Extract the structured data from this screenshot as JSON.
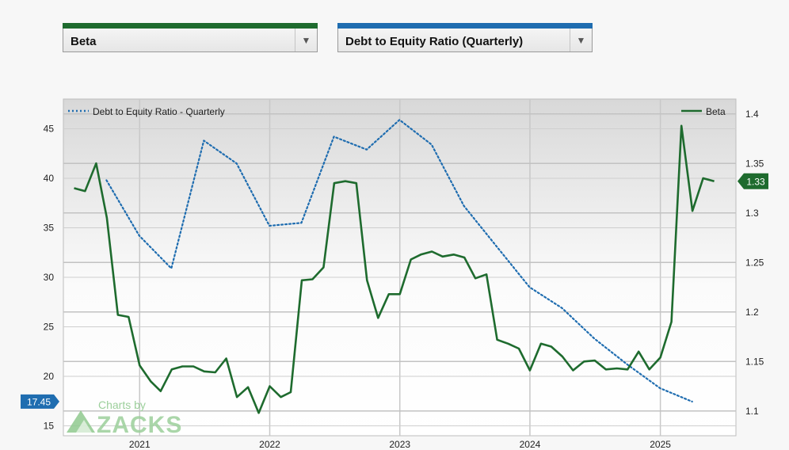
{
  "selectors": {
    "left": {
      "label": "Beta",
      "color": "#1e6b2e",
      "arrow": "▼"
    },
    "right": {
      "label": "Debt to Equity Ratio (Quarterly)",
      "color": "#1f6db0",
      "arrow": "▼"
    }
  },
  "watermark": {
    "line1": "Charts by",
    "line2": "ZACKS"
  },
  "chart_data": {
    "type": "line",
    "title": "",
    "grid": true,
    "x_ticks": [
      "2021",
      "2022",
      "2023",
      "2024",
      "2025"
    ],
    "y_left": {
      "ticks": [
        "45",
        "40",
        "35",
        "30",
        "25",
        "20",
        "15"
      ],
      "range": [
        14,
        48
      ]
    },
    "y_right": {
      "ticks": [
        "1.4",
        "1.35",
        "1.3",
        "1.25",
        "1.2",
        "1.15",
        "1.1"
      ],
      "range": [
        1.075,
        1.415
      ]
    },
    "legend": {
      "left_entry": "Debt to Equity Ratio - Quarterly",
      "right_entry": "Beta"
    },
    "series": [
      {
        "name": "Debt to Equity Ratio - Quarterly",
        "axis": "left",
        "color": "#1f6db0",
        "style": "dotted",
        "points": [
          [
            "2020-09-30",
            39.8
          ],
          [
            "2020-12-31",
            34.2
          ],
          [
            "2021-03-31",
            30.9
          ],
          [
            "2021-06-30",
            43.8
          ],
          [
            "2021-09-30",
            41.5
          ],
          [
            "2021-12-31",
            35.2
          ],
          [
            "2022-03-31",
            35.5
          ],
          [
            "2022-06-30",
            44.2
          ],
          [
            "2022-09-30",
            42.9
          ],
          [
            "2022-12-31",
            45.9
          ],
          [
            "2023-03-31",
            43.4
          ],
          [
            "2023-06-30",
            37.2
          ],
          [
            "2023-09-30",
            33.1
          ],
          [
            "2023-12-31",
            29.0
          ],
          [
            "2024-03-31",
            26.9
          ],
          [
            "2024-06-30",
            23.8
          ],
          [
            "2024-09-30",
            21.2
          ],
          [
            "2024-12-31",
            18.8
          ],
          [
            "2025-03-31",
            17.45
          ]
        ],
        "last_label": "17.45"
      },
      {
        "name": "Beta",
        "axis": "right",
        "color": "#1e6b2e",
        "style": "solid",
        "points": [
          [
            "2020-07-01",
            1.325
          ],
          [
            "2020-08-01",
            1.322
          ],
          [
            "2020-09-01",
            1.35
          ],
          [
            "2020-10-01",
            1.295
          ],
          [
            "2020-11-01",
            1.197
          ],
          [
            "2020-12-01",
            1.195
          ],
          [
            "2021-01-01",
            1.146
          ],
          [
            "2021-02-01",
            1.13
          ],
          [
            "2021-03-01",
            1.12
          ],
          [
            "2021-04-01",
            1.142
          ],
          [
            "2021-05-01",
            1.145
          ],
          [
            "2021-06-01",
            1.145
          ],
          [
            "2021-07-01",
            1.14
          ],
          [
            "2021-08-01",
            1.139
          ],
          [
            "2021-09-01",
            1.153
          ],
          [
            "2021-10-01",
            1.114
          ],
          [
            "2021-11-01",
            1.124
          ],
          [
            "2021-12-01",
            1.098
          ],
          [
            "2022-01-01",
            1.125
          ],
          [
            "2022-02-01",
            1.114
          ],
          [
            "2022-03-01",
            1.119
          ],
          [
            "2022-04-01",
            1.232
          ],
          [
            "2022-05-01",
            1.233
          ],
          [
            "2022-06-01",
            1.245
          ],
          [
            "2022-07-01",
            1.33
          ],
          [
            "2022-08-01",
            1.332
          ],
          [
            "2022-09-01",
            1.33
          ],
          [
            "2022-10-01",
            1.232
          ],
          [
            "2022-11-01",
            1.194
          ],
          [
            "2022-12-01",
            1.218
          ],
          [
            "2023-01-01",
            1.218
          ],
          [
            "2023-02-01",
            1.253
          ],
          [
            "2023-03-01",
            1.258
          ],
          [
            "2023-04-01",
            1.261
          ],
          [
            "2023-05-01",
            1.256
          ],
          [
            "2023-06-01",
            1.258
          ],
          [
            "2023-07-01",
            1.255
          ],
          [
            "2023-08-01",
            1.234
          ],
          [
            "2023-09-01",
            1.238
          ],
          [
            "2023-10-01",
            1.172
          ],
          [
            "2023-11-01",
            1.168
          ],
          [
            "2023-12-01",
            1.163
          ],
          [
            "2024-01-01",
            1.141
          ],
          [
            "2024-02-01",
            1.168
          ],
          [
            "2024-03-01",
            1.165
          ],
          [
            "2024-04-01",
            1.155
          ],
          [
            "2024-05-01",
            1.141
          ],
          [
            "2024-06-01",
            1.15
          ],
          [
            "2024-07-01",
            1.151
          ],
          [
            "2024-08-01",
            1.142
          ],
          [
            "2024-09-01",
            1.143
          ],
          [
            "2024-10-01",
            1.142
          ],
          [
            "2024-11-01",
            1.16
          ],
          [
            "2024-12-01",
            1.142
          ],
          [
            "2025-01-01",
            1.154
          ],
          [
            "2025-02-01",
            1.19
          ],
          [
            "2025-03-01",
            1.388
          ],
          [
            "2025-04-01",
            1.302
          ],
          [
            "2025-05-01",
            1.335
          ],
          [
            "2025-06-01",
            1.332
          ]
        ],
        "last_label": "1.33"
      }
    ]
  }
}
